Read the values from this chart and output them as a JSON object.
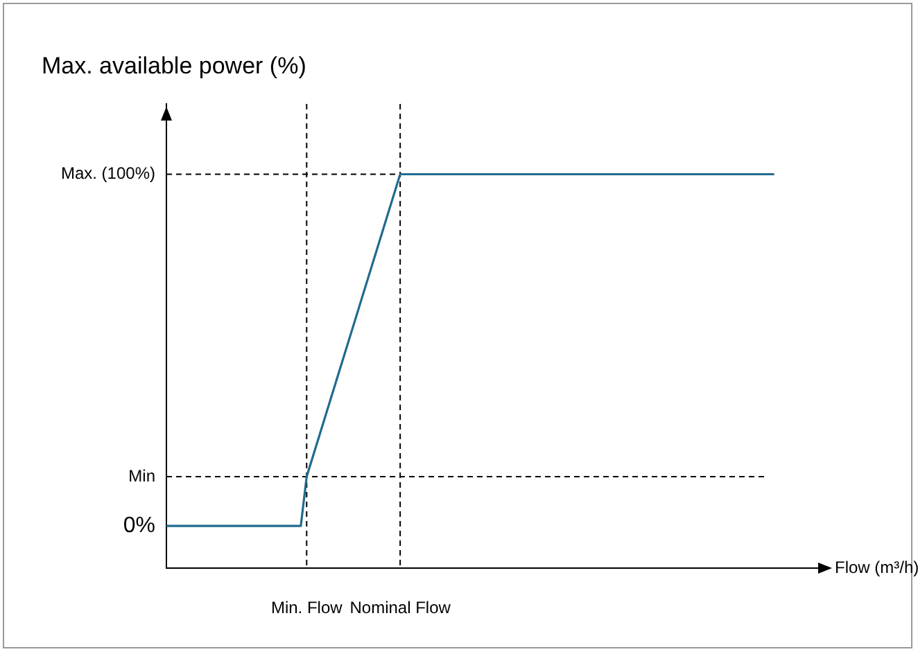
{
  "chart_data": {
    "type": "line",
    "title": "Max. available power (%)",
    "xlabel": "Flow (m³/h)",
    "categories": [
      null,
      null,
      null,
      null,
      null,
      null,
      null,
      null,
      null,
      null,
      null,
      null,
      null,
      null,
      null,
      null,
      null,
      null,
      null,
      null,
      null,
      null,
      null,
      null,
      "Min. Flow",
      null,
      null,
      null,
      null,
      null,
      null,
      null,
      null,
      null,
      null,
      null,
      null,
      null,
      null,
      null,
      "Nominal Flow",
      null,
      null,
      null,
      null,
      null,
      null,
      null,
      null,
      null,
      null,
      null,
      null,
      null,
      null,
      null,
      null,
      null,
      null,
      null,
      null,
      null,
      null,
      null,
      null,
      null,
      null,
      null,
      null,
      null,
      null,
      null,
      null,
      null,
      null,
      null,
      null,
      null,
      null,
      null,
      null,
      null,
      null,
      null,
      null,
      null,
      null,
      null,
      null,
      null,
      null,
      null,
      null,
      null,
      null,
      null,
      null,
      null,
      null,
      null,
      null,
      null,
      null,
      null,
      null,
      null,
      null,
      null,
      null,
      null,
      null,
      null,
      null
    ],
    "series": [
      {
        "color": "#1f6b8f",
        "values": [
          0,
          null,
          null,
          null,
          null,
          null,
          null,
          null,
          null,
          null,
          null,
          null,
          null,
          null,
          null,
          null,
          null,
          null,
          null,
          null,
          null,
          null,
          null,
          0,
          14,
          null,
          null,
          null,
          null,
          null,
          null,
          null,
          null,
          null,
          null,
          null,
          null,
          null,
          null,
          null,
          100,
          null,
          null,
          null,
          null,
          null,
          null,
          null,
          null,
          null,
          null,
          null,
          null,
          null,
          null,
          null,
          null,
          null,
          null,
          null,
          null,
          null,
          null,
          null,
          null,
          null,
          null,
          null,
          null,
          null,
          null,
          null,
          null,
          null,
          null,
          null,
          null,
          null,
          null,
          null,
          null,
          null,
          null,
          null,
          null,
          null,
          null,
          null,
          null,
          null,
          null,
          null,
          null,
          null,
          null,
          null,
          null,
          null,
          null,
          null,
          null,
          null,
          null,
          null,
          100,
          null,
          null,
          null,
          null,
          null,
          null,
          null,
          null
        ]
      }
    ],
    "ylim": [
      -12,
      120
    ],
    "yticks": [
      {
        "value": 0,
        "label": "0%"
      },
      {
        "value": 14,
        "label": "Min"
      },
      {
        "value": 100,
        "label": "Max. (100%)"
      }
    ],
    "ref_lines": [
      {
        "axis": "x",
        "value": "Min. Flow",
        "line_style": "dashed"
      },
      {
        "axis": "x",
        "value": "Nominal Flow",
        "line_style": "dashed"
      },
      {
        "axis": "y",
        "value": 14,
        "line_style": "dashed"
      },
      {
        "axis": "y",
        "value": 100,
        "line_style": "dashed"
      }
    ],
    "grid": false,
    "legend": false,
    "marker": "none",
    "line_style": "solid"
  }
}
